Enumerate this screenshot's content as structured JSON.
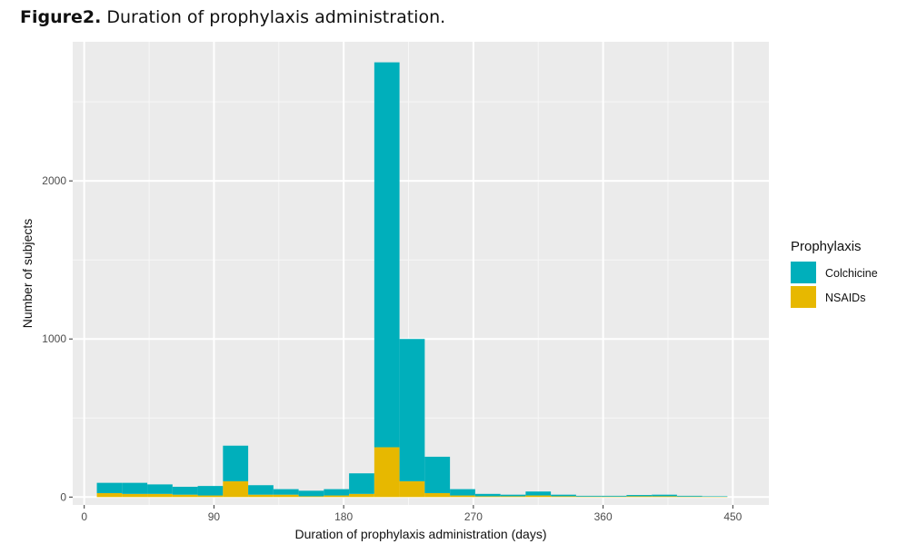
{
  "caption": {
    "label": "Figure2.",
    "text": "Duration of prophylaxis administration."
  },
  "chart_data": {
    "type": "bar",
    "stacked": true,
    "xlabel": "Duration of prophylaxis administration (days)",
    "ylabel": "Number of subjects",
    "xlim": [
      -8,
      475
    ],
    "ylim": [
      -50,
      2880
    ],
    "x_ticks": [
      0,
      90,
      180,
      270,
      360,
      450
    ],
    "y_ticks": [
      0,
      1000,
      2000
    ],
    "bin_width": 17.5,
    "bin_centers": [
      17.5,
      35,
      52.5,
      70,
      87.5,
      105,
      122.5,
      140,
      157.5,
      175,
      192.5,
      210,
      227.5,
      245,
      262.5,
      280,
      297.5,
      315,
      332.5,
      350,
      367.5,
      385,
      402.5,
      420,
      437.5
    ],
    "legend": {
      "title": "Prophylaxis",
      "position": "right"
    },
    "grid": true,
    "series": [
      {
        "name": "Colchicine",
        "color": "#00AFBB",
        "values": [
          65,
          70,
          60,
          50,
          60,
          225,
          60,
          35,
          35,
          40,
          130,
          2435,
          900,
          230,
          40,
          15,
          10,
          25,
          10,
          5,
          5,
          8,
          10,
          5,
          3
        ]
      },
      {
        "name": "NSAIDs",
        "color": "#E7B800",
        "values": [
          25,
          20,
          20,
          15,
          10,
          100,
          15,
          15,
          5,
          10,
          20,
          315,
          100,
          25,
          10,
          5,
          5,
          10,
          5,
          3,
          3,
          5,
          5,
          3,
          2
        ]
      }
    ]
  }
}
